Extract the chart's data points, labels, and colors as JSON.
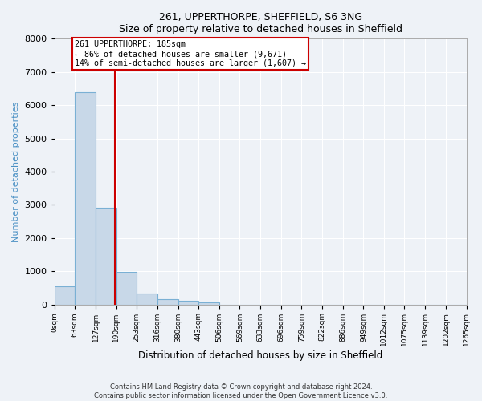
{
  "title": "261, UPPERTHORPE, SHEFFIELD, S6 3NG",
  "subtitle": "Size of property relative to detached houses in Sheffield",
  "xlabel": "Distribution of detached houses by size in Sheffield",
  "ylabel": "Number of detached properties",
  "bar_values": [
    550,
    6400,
    2920,
    970,
    340,
    155,
    100,
    60,
    0,
    0,
    0,
    0,
    0,
    0,
    0,
    0,
    0,
    0,
    0,
    0
  ],
  "bin_edges": [
    0,
    63,
    127,
    190,
    253,
    316,
    380,
    443,
    506,
    569,
    633,
    696,
    759,
    822,
    886,
    949,
    1012,
    1075,
    1139,
    1202,
    1265
  ],
  "tick_labels": [
    "0sqm",
    "63sqm",
    "127sqm",
    "190sqm",
    "253sqm",
    "316sqm",
    "380sqm",
    "443sqm",
    "506sqm",
    "569sqm",
    "633sqm",
    "696sqm",
    "759sqm",
    "822sqm",
    "886sqm",
    "949sqm",
    "1012sqm",
    "1075sqm",
    "1139sqm",
    "1202sqm",
    "1265sqm"
  ],
  "bar_color": "#c8d8e8",
  "bar_edge_color": "#7ab0d4",
  "vline_x": 185,
  "vline_color": "#cc0000",
  "annotation_text": "261 UPPERTHORPE: 185sqm\n← 86% of detached houses are smaller (9,671)\n14% of semi-detached houses are larger (1,607) →",
  "annotation_box_edge": "#cc0000",
  "ylim": [
    0,
    8000
  ],
  "yticks": [
    0,
    1000,
    2000,
    3000,
    4000,
    5000,
    6000,
    7000,
    8000
  ],
  "background_color": "#eef2f7",
  "grid_color": "#ffffff",
  "footer1": "Contains HM Land Registry data © Crown copyright and database right 2024.",
  "footer2": "Contains public sector information licensed under the Open Government Licence v3.0."
}
